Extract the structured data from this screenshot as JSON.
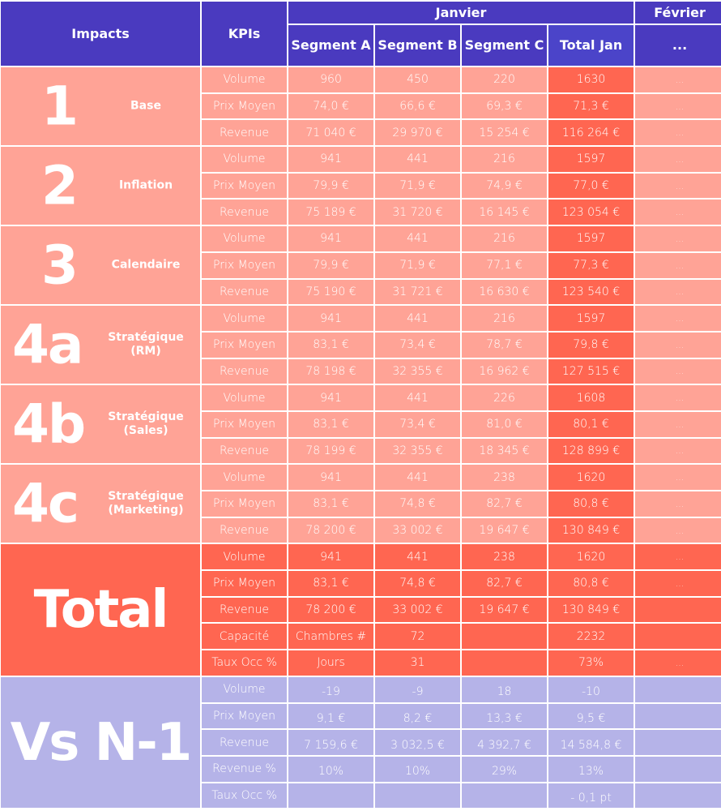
{
  "colors": {
    "header": "#4A3ABF",
    "light": "#FFA396",
    "strong": "#FF6651",
    "lavender": "#B5B3E8"
  },
  "header": {
    "impacts": "Impacts",
    "kpis": "KPIs",
    "janvier": "Janvier",
    "fevrier": "Février",
    "segments": [
      "Segment A",
      "Segment B",
      "Segment C",
      "Total Jan"
    ],
    "fevrier_sub": "..."
  },
  "sections": [
    {
      "num": "1",
      "label": "Base",
      "rows": [
        {
          "kpi": "Volume",
          "values": [
            "960",
            "450",
            "220",
            "1630",
            "..."
          ]
        },
        {
          "kpi": "Prix Moyen",
          "values": [
            "74,0 €",
            "66,6 €",
            "69,3 €",
            "71,3 €",
            "..."
          ]
        },
        {
          "kpi": "Revenue",
          "values": [
            "71 040 €",
            "29 970 €",
            "15 254 €",
            "116 264 €",
            "..."
          ]
        }
      ]
    },
    {
      "num": "2",
      "label": "Inflation",
      "rows": [
        {
          "kpi": "Volume",
          "values": [
            "941",
            "441",
            "216",
            "1597",
            "..."
          ]
        },
        {
          "kpi": "Prix Moyen",
          "values": [
            "79,9 €",
            "71,9 €",
            "74,9 €",
            "77,0 €",
            "..."
          ]
        },
        {
          "kpi": "Revenue",
          "values": [
            "75 189 €",
            "31 720 €",
            "16 145 €",
            "123 054 €",
            "..."
          ]
        }
      ]
    },
    {
      "num": "3",
      "label": "Calendaire",
      "rows": [
        {
          "kpi": "Volume",
          "values": [
            "941",
            "441",
            "216",
            "1597",
            "..."
          ]
        },
        {
          "kpi": "Prix Moyen",
          "values": [
            "79,9 €",
            "71,9 €",
            "77,1 €",
            "77,3 €",
            "..."
          ]
        },
        {
          "kpi": "Revenue",
          "values": [
            "75 190 €",
            "31 721 €",
            "16 630 €",
            "123 540 €",
            "..."
          ]
        }
      ]
    },
    {
      "num": "4a",
      "label": "Stratégique\n(RM)",
      "rows": [
        {
          "kpi": "Volume",
          "values": [
            "941",
            "441",
            "216",
            "1597",
            "..."
          ]
        },
        {
          "kpi": "Prix Moyen",
          "values": [
            "83,1 €",
            "73,4 €",
            "78,7 €",
            "79,8 €",
            "..."
          ]
        },
        {
          "kpi": "Revenue",
          "values": [
            "78 198 €",
            "32 355 €",
            "16 962 €",
            "127 515 €",
            "..."
          ]
        }
      ]
    },
    {
      "num": "4b",
      "label": "Stratégique\n(Sales)",
      "rows": [
        {
          "kpi": "Volume",
          "values": [
            "941",
            "441",
            "226",
            "1608",
            "..."
          ]
        },
        {
          "kpi": "Prix Moyen",
          "values": [
            "83,1 €",
            "73,4 €",
            "81,0 €",
            "80,1 €",
            "..."
          ]
        },
        {
          "kpi": "Revenue",
          "values": [
            "78 199 €",
            "32 355 €",
            "18 345 €",
            "128 899 €",
            "..."
          ]
        }
      ]
    },
    {
      "num": "4c",
      "label": "Stratégique\n(Marketing)",
      "rows": [
        {
          "kpi": "Volume",
          "values": [
            "941",
            "441",
            "238",
            "1620",
            "..."
          ]
        },
        {
          "kpi": "Prix Moyen",
          "values": [
            "83,1 €",
            "74,8 €",
            "82,7 €",
            "80,8 €",
            "..."
          ]
        },
        {
          "kpi": "Revenue",
          "values": [
            "78 200 €",
            "33 002 €",
            "19 647 €",
            "130 849 €",
            "..."
          ]
        }
      ]
    },
    {
      "num": "Total",
      "label": "",
      "style": "strong",
      "rows": [
        {
          "kpi": "Volume",
          "values": [
            "941",
            "441",
            "238",
            "1620",
            "..."
          ]
        },
        {
          "kpi": "Prix Moyen",
          "values": [
            "83,1 €",
            "74,8 €",
            "82,7 €",
            "80,8 €",
            "..."
          ]
        },
        {
          "kpi": "Revenue",
          "values": [
            "78 200 €",
            "33 002 €",
            "19 647 €",
            "130 849 €",
            ""
          ]
        },
        {
          "kpi": "Capacité",
          "values": [
            "Chambres #",
            "72",
            "",
            "2232",
            ""
          ]
        },
        {
          "kpi": "Taux Occ %",
          "values": [
            "Jours",
            "31",
            "",
            "73%",
            "..."
          ]
        }
      ]
    },
    {
      "num": "Vs N-1",
      "label": "",
      "style": "lav",
      "rows": [
        {
          "kpi": "Volume",
          "values": [
            "-19",
            "-9",
            "18",
            "-10",
            ""
          ]
        },
        {
          "kpi": "Prix Moyen",
          "values": [
            "9,1 €",
            "8,2 €",
            "13,3 €",
            "9,5 €",
            ""
          ]
        },
        {
          "kpi": "Revenue",
          "values": [
            "7 159,6 €",
            "3 032,5 €",
            "4 392,7 €",
            "14 584,8 €",
            ""
          ]
        },
        {
          "kpi": "Revenue %",
          "values": [
            "10%",
            "10%",
            "29%",
            "13%",
            ""
          ]
        },
        {
          "kpi": "Taux Occ %",
          "values": [
            "",
            "",
            "",
            "- 0,1 pt",
            ""
          ]
        }
      ]
    }
  ]
}
